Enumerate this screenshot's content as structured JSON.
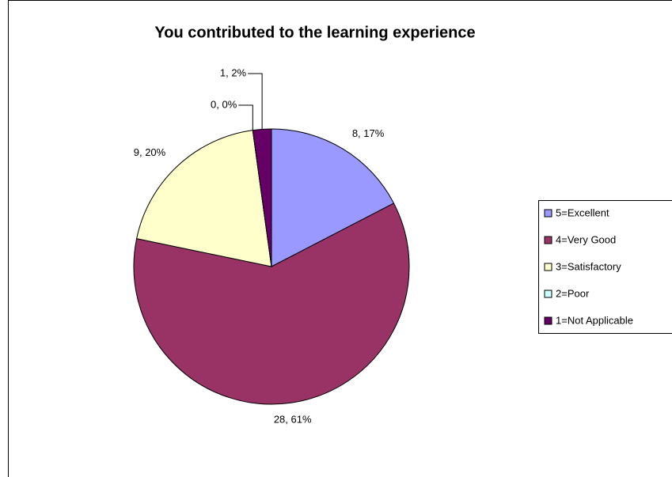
{
  "chart_data": {
    "type": "pie",
    "title": "You contributed to the learning experience",
    "categories": [
      "5=Excellent",
      "4=Very Good",
      "3=Satisfactory",
      "2=Poor",
      "1=Not Applicable"
    ],
    "values": [
      8,
      28,
      9,
      0,
      1
    ],
    "value_labels": [
      "8, 17%",
      "28, 61%",
      "9, 20%",
      "0, 0%",
      "1, 2%"
    ],
    "colors": [
      "#9999ff",
      "#993366",
      "#ffffcc",
      "#ccffff",
      "#660066"
    ],
    "legend": "right"
  }
}
